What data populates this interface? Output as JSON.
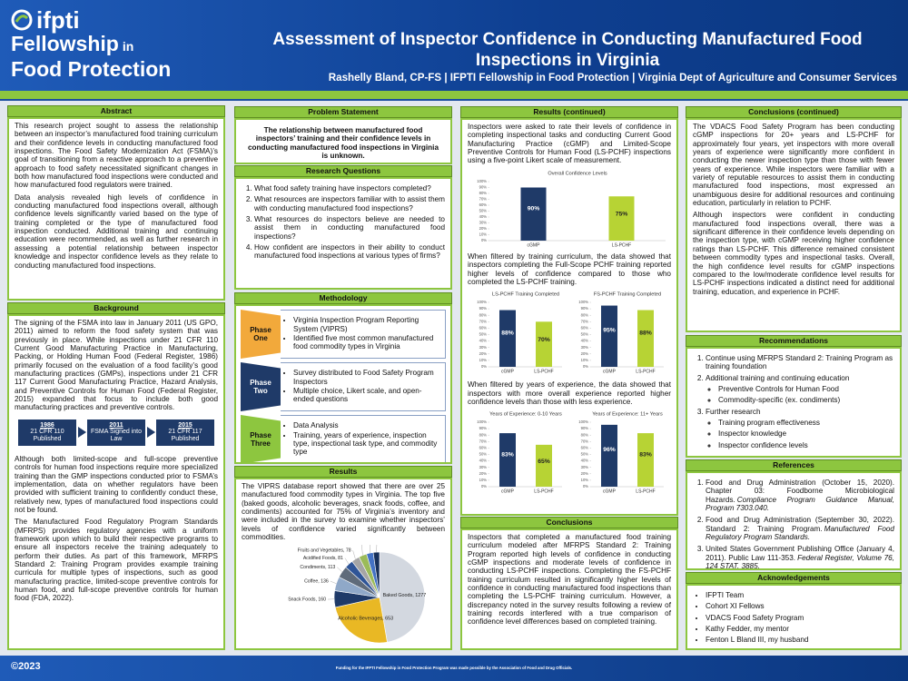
{
  "header": {
    "logo": {
      "brand": "ifpti",
      "line1": "Fellowship",
      "line1_small": "in",
      "line2": "Food Protection"
    },
    "title": "Assessment of Inspector Confidence in Conducting Manufactured Food Inspections in Virginia",
    "author": "Rashelly Bland, CP-FS | IFPTI Fellowship in Food Protection | Virginia Dept of Agriculture and Consumer Services"
  },
  "abstract": {
    "heading": "Abstract",
    "paragraphs": [
      "This research project sought to assess the relationship between an inspector’s manufactured food training curriculum and their confidence levels in conducting manufactured food inspections. The Food Safety Modernization Act (FSMA)’s goal of transitioning from a reactive approach to a preventive approach to food safety necessitated significant changes in both how manufactured food inspections were conducted and how manufactured food regulators were trained.",
      "Data analysis revealed high levels of confidence in conducting manufactured food inspections overall, although confidence levels significantly varied based on the type of training completed or the type of manufactured food inspection conducted. Additional training and continuing education were recommended, as well as further research in assessing a potential relationship between inspector knowledge and inspector confidence levels as they relate to conducting manufactured food inspections."
    ]
  },
  "background": {
    "heading": "Background",
    "paragraphs_top": [
      "The signing of the FSMA into law in January 2011 (US GPO, 2011) aimed to reform the food safety system that was previously in place. While inspections under 21 CFR 110 Current Good Manufacturing Practice in Manufacturing, Packing, or Holding Human Food (Federal Register, 1986) primarily focused on the evaluation of a food facility’s good manufacturing practices (GMPs), inspections under 21 CFR 117 Current Good Manufacturing Practice, Hazard Analysis, and Preventive Controls for Human Food (Federal Register, 2015) expanded that focus to include both good manufacturing practices and preventive controls."
    ],
    "timeline": [
      {
        "year": "1986",
        "label": "21 CFR 110 Published"
      },
      {
        "year": "2011",
        "label": "FSMA Signed into Law"
      },
      {
        "year": "2015",
        "label": "21 CFR 117 Published"
      }
    ],
    "paragraphs_bottom": [
      "Although both limited-scope and full-scope preventive controls for human food inspections require more specialized training than the GMP inspections conducted prior to FSMA’s implementation, data on whether regulators have been provided with sufficient training to confidently conduct these, relatively new, types of manufactured food inspections could not be found.",
      "The Manufactured Food Regulatory Program Standards (MFRPS) provides regulatory agencies with a uniform framework upon which to build their respective programs to ensure all inspectors receive the training adequately to perform their duties. As part of this framework, MFRPS Standard 2: Training Program provides example training curricula for multiple types of inspections, such as good manufacturing practice, limited-scope preventive controls for human food, and full-scope preventive controls for human food (FDA, 2022)."
    ]
  },
  "problem": {
    "heading": "Problem Statement",
    "text": "The relationship between manufactured food inspectors’ training and their confidence levels in conducting manufactured food inspections in Virginia is unknown."
  },
  "research_questions": {
    "heading": "Research Questions",
    "items": [
      "What food safety training have inspectors completed?",
      "What resources are inspectors familiar with to assist them with conducting manufactured food inspections?",
      "What resources do inspectors believe are needed to assist them in conducting manufactured food inspections?",
      "How confident are inspectors in their ability to conduct manufactured food inspections at various types of firms?"
    ]
  },
  "methodology": {
    "heading": "Methodology",
    "phases": [
      {
        "label": "Phase One",
        "color": "#f2a93b",
        "items": [
          "Virginia Inspection Program Reporting System (VIPRS)",
          "Identified five most common manufactured food commodity types in Virginia"
        ]
      },
      {
        "label": "Phase Two",
        "color": "#1f3a68",
        "items": [
          "Survey distributed to Food Safety Program Inspectors",
          "Multiple choice, Likert scale, and open-ended questions"
        ]
      },
      {
        "label": "Phase Three",
        "color": "#8dc63f",
        "items": [
          "Data Analysis",
          "Training, years of experience, inspection type, inspectional task type, and commodity type"
        ]
      }
    ]
  },
  "results": {
    "heading": "Results",
    "paragraph": "The VIPRS database report showed that there are over 25 manufactured food commodity types in Virginia. The top five (baked goods, alcoholic beverages, snack foods, coffee, and condiments) accounted for 75% of Virginia’s inventory and were included in the survey to examine whether inspectors’ levels of confidence varied significantly between commodities."
  },
  "results_continued": {
    "heading": "Results (continued)",
    "paragraphs": [
      "Inspectors were asked to rate their levels of confidence in completing inspectional tasks and conducting Current Good Manufacturing Practice (cGMP) and Limited-Scope Preventive Controls for Human Food (LS-PCHF) inspections using a five-point Likert scale of measurement.",
      "When filtered by training curriculum, the data showed that inspectors completing the Full-Scope PCHF training reported higher levels of confidence compared to those who completed the LS-PCHF training.",
      "When filtered by years of experience, the data showed that inspectors with more overall experience reported higher confidence levels than those with less experience."
    ]
  },
  "conclusions": {
    "heading": "Conclusions",
    "paragraph": "Inspectors that completed a manufactured food training curriculum modeled after MFRPS Standard 2: Training Program reported high levels of confidence in conducting cGMP inspections and moderate levels of confidence in conducting LS-PCHF inspections. Completing the FS-PCHF training curriculum resulted in significantly higher levels of confidence in conducting manufactured food inspections than completing the LS-PCHF training curriculum. However, a discrepancy noted in the survey results following a review of training records interfered with a true comparison of confidence level differences based on completed training."
  },
  "conclusions_continued": {
    "heading": "Conclusions (continued)",
    "paragraphs": [
      "The VDACS Food Safety Program has been conducting cGMP inspections for 20+ years and LS-PCHF for approximately four years, yet inspectors with more overall years of experience were significantly more confident in conducting the newer inspection type than those with fewer years of experience. While inspectors were familiar with a variety of reputable resources to assist them in conducting manufactured food inspections, most expressed an unambiguous desire for additional resources and continuing education, particularly in relation to PCHF.",
      "Although inspectors were confident in conducting manufactured food inspections overall, there was a significant difference in their confidence levels depending on the inspection type, with cGMP receiving higher confidence ratings than LS-PCHF. This difference remained consistent between commodity types and inspectional tasks. Overall, the high confidence level results for cGMP inspections compared to the low/moderate confidence level results for LS-PCHF inspections indicated a distinct need for additional training, education, and experience in PCHF."
    ]
  },
  "recommendations": {
    "heading": "Recommendations",
    "items": [
      {
        "text": "Continue using MFRPS Standard 2: Training Program as training foundation"
      },
      {
        "text": "Additional training and continuing education",
        "subitems": [
          "Preventive Controls for Human Food",
          "Commodity-specific (ex. condiments)"
        ]
      },
      {
        "text": "Further research",
        "subitems": [
          "Training program effectiveness",
          "Inspector knowledge",
          "Inspector confidence levels"
        ]
      }
    ]
  },
  "references": {
    "heading": "References",
    "items": [
      {
        "text": "Food and Drug Administration (October 15, 2020). Chapter 03: Foodborne Microbiological Hazards.",
        "source": "Compliance Program Guidance Manual, Program 7303.040."
      },
      {
        "text": "Food and Drug Administration (September 30, 2022). Standard 2: Training Program.",
        "source": "Manufactured Food Regulatory Program Standards."
      },
      {
        "text": "United States Government Publishing Office (January 4, 2011). Public Law 111-353.",
        "source": "Federal Register, Volume 76, 124 STAT, 3885."
      }
    ]
  },
  "acknowledgements": {
    "heading": "Acknowledgements",
    "items": [
      "IFPTI Team",
      "Cohort XI Fellows",
      "VDACS Food Safety Program",
      "Kathy Fedder, my mentor",
      "Fenton L Bland III, my husband"
    ]
  },
  "footer": {
    "copyright": "©2023",
    "funding": "Funding for the IFPTI Fellowship in Food Protection Program was made possible by the Association of Food and Drug Officials."
  },
  "chart_data": [
    {
      "type": "bar",
      "title": "Overall Confidence Levels",
      "categories": [
        "cGMP",
        "LS-PCHF"
      ],
      "values": [
        90,
        75
      ],
      "value_labels": [
        "90%",
        "75%"
      ],
      "colors": [
        "#1f3a68",
        "#b7d334"
      ],
      "ylim": [
        0,
        100
      ],
      "yticks": [
        {
          "value": 0,
          "label": "0%"
        },
        {
          "value": 10,
          "label": "10%"
        },
        {
          "value": 20,
          "label": "20%"
        },
        {
          "value": 30,
          "label": "30%"
        },
        {
          "value": 40,
          "label": "40%"
        },
        {
          "value": 50,
          "label": "50%"
        },
        {
          "value": 60,
          "label": "60%"
        },
        {
          "value": 70,
          "label": "70%"
        },
        {
          "value": 80,
          "label": "80%"
        },
        {
          "value": 90,
          "label": "90%"
        },
        {
          "value": 100,
          "label": "100%"
        }
      ]
    },
    {
      "type": "bar",
      "title": "LS-PCHF Training Completed",
      "categories": [
        "cGMP",
        "LS-PCHF"
      ],
      "values": [
        88,
        70
      ],
      "value_labels": [
        "88%",
        "70%"
      ],
      "colors": [
        "#1f3a68",
        "#b7d334"
      ],
      "ylim": [
        0,
        100
      ],
      "yticks": [
        {
          "value": 0,
          "label": "0%"
        },
        {
          "value": 10,
          "label": "10%"
        },
        {
          "value": 20,
          "label": "20%"
        },
        {
          "value": 30,
          "label": "30%"
        },
        {
          "value": 40,
          "label": "40%"
        },
        {
          "value": 50,
          "label": "50%"
        },
        {
          "value": 60,
          "label": "60%"
        },
        {
          "value": 70,
          "label": "70%"
        },
        {
          "value": 80,
          "label": "80%"
        },
        {
          "value": 90,
          "label": "90%"
        },
        {
          "value": 100,
          "label": "100%"
        }
      ]
    },
    {
      "type": "bar",
      "title": "FS-PCHF Training Completed",
      "categories": [
        "cGMP",
        "LS-PCHF"
      ],
      "values": [
        95,
        88
      ],
      "value_labels": [
        "95%",
        "88%"
      ],
      "colors": [
        "#1f3a68",
        "#b7d334"
      ],
      "ylim": [
        0,
        100
      ],
      "yticks": [
        {
          "value": 0,
          "label": "0%"
        },
        {
          "value": 10,
          "label": "10%"
        },
        {
          "value": 20,
          "label": "20%"
        },
        {
          "value": 30,
          "label": "30%"
        },
        {
          "value": 40,
          "label": "40%"
        },
        {
          "value": 50,
          "label": "50%"
        },
        {
          "value": 60,
          "label": "60%"
        },
        {
          "value": 70,
          "label": "70%"
        },
        {
          "value": 80,
          "label": "80%"
        },
        {
          "value": 90,
          "label": "90%"
        },
        {
          "value": 100,
          "label": "100%"
        }
      ]
    },
    {
      "type": "bar",
      "title": "Years of Experience: 0-10 Years",
      "categories": [
        "cGMP",
        "LS-PCHF"
      ],
      "values": [
        83,
        65
      ],
      "value_labels": [
        "83%",
        "65%"
      ],
      "colors": [
        "#1f3a68",
        "#b7d334"
      ],
      "ylim": [
        0,
        100
      ],
      "yticks": [
        {
          "value": 0,
          "label": "0%"
        },
        {
          "value": 10,
          "label": "10%"
        },
        {
          "value": 20,
          "label": "20%"
        },
        {
          "value": 30,
          "label": "30%"
        },
        {
          "value": 40,
          "label": "40%"
        },
        {
          "value": 50,
          "label": "50%"
        },
        {
          "value": 60,
          "label": "60%"
        },
        {
          "value": 70,
          "label": "70%"
        },
        {
          "value": 80,
          "label": "80%"
        },
        {
          "value": 90,
          "label": "90%"
        },
        {
          "value": 100,
          "label": "100%"
        }
      ]
    },
    {
      "type": "bar",
      "title": "Years of Experience: 11+ Years",
      "categories": [
        "cGMP",
        "LS-PCHF"
      ],
      "values": [
        96,
        83
      ],
      "value_labels": [
        "96%",
        "83%"
      ],
      "colors": [
        "#1f3a68",
        "#b7d334"
      ],
      "ylim": [
        0,
        100
      ],
      "yticks": [
        {
          "value": 0,
          "label": "0%"
        },
        {
          "value": 10,
          "label": "10%"
        },
        {
          "value": 20,
          "label": "20%"
        },
        {
          "value": 30,
          "label": "30%"
        },
        {
          "value": 40,
          "label": "40%"
        },
        {
          "value": 50,
          "label": "50%"
        },
        {
          "value": 60,
          "label": "60%"
        },
        {
          "value": 70,
          "label": "70%"
        },
        {
          "value": 80,
          "label": "80%"
        },
        {
          "value": 90,
          "label": "90%"
        },
        {
          "value": 100,
          "label": "100%"
        }
      ]
    },
    {
      "type": "pie",
      "value_labels": [
        "Baked Goods, 1277",
        "Alcoholic Beverages, 653",
        "Snack Foods, 160",
        "Coffee, 136",
        "Condiments, 113",
        "Acidified Foods, 81",
        "Fruits and Vegetables, 78",
        "Honey, 77",
        "Spices, 65",
        "Seafood, 60"
      ],
      "values": [
        1277,
        653,
        160,
        136,
        113,
        81,
        78,
        77,
        65,
        60
      ],
      "colors": [
        "#d3d8e0",
        "#e9b824",
        "#1f3a68",
        "#8fa8c8",
        "#5f6b7a",
        "#2f5597",
        "#a5a5a5",
        "#9bbb59",
        "#4472c4",
        "#17305a"
      ]
    }
  ]
}
